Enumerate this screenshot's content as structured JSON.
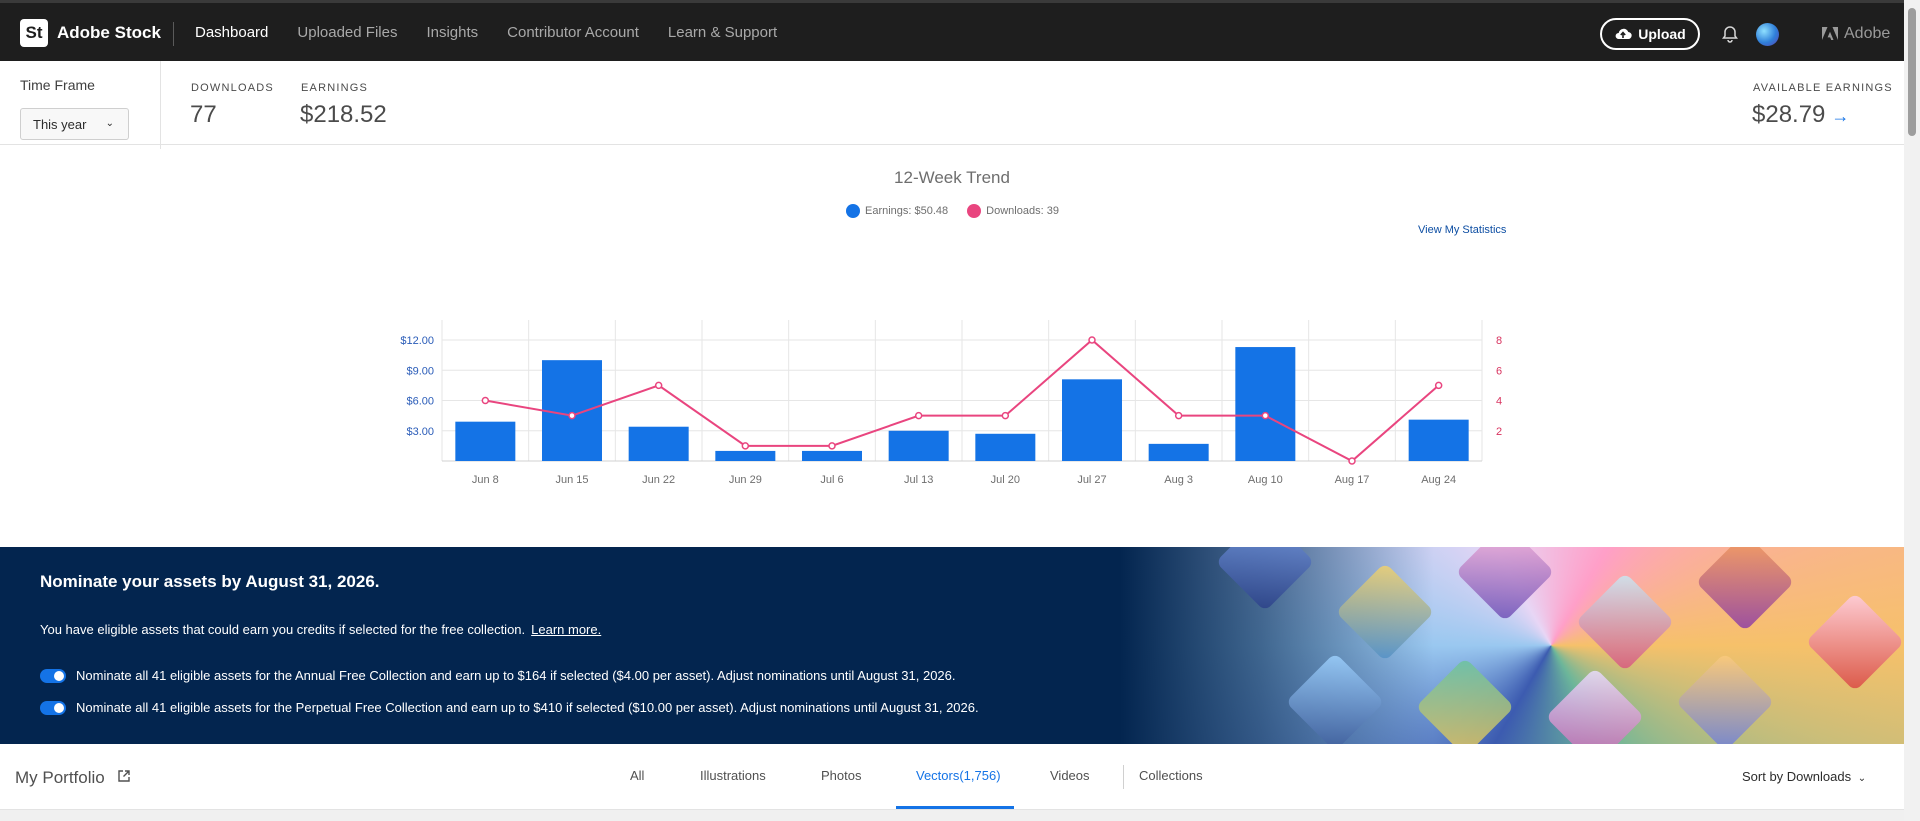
{
  "header": {
    "logo_text": "St",
    "brand": "Adobe Stock",
    "nav": [
      {
        "label": "Dashboard",
        "active": true
      },
      {
        "label": "Uploaded Files",
        "active": false
      },
      {
        "label": "Insights",
        "active": false
      },
      {
        "label": "Contributor Account",
        "active": false
      },
      {
        "label": "Learn & Support",
        "active": false
      }
    ],
    "upload_label": "Upload",
    "adobe_label": "Adobe"
  },
  "stats": {
    "timeframe_label": "Time Frame",
    "timeframe_value": "This year",
    "downloads_label": "DOWNLOADS",
    "downloads_value": "77",
    "earnings_label": "EARNINGS",
    "earnings_value": "$218.52",
    "available_label": "AVAILABLE EARNINGS",
    "available_value": "$28.79"
  },
  "chart_header": {
    "title": "12-Week Trend",
    "legend_earnings": "Earnings: $50.48",
    "legend_downloads": "Downloads: 39",
    "view_stats": "View My Statistics"
  },
  "chart_data": {
    "type": "bar",
    "title": "12-Week Trend",
    "categories": [
      "Jun 8",
      "Jun 15",
      "Jun 22",
      "Jun 29",
      "Jul 6",
      "Jul 13",
      "Jul 20",
      "Jul 27",
      "Aug 3",
      "Aug 10",
      "Aug 17",
      "Aug 24"
    ],
    "series": [
      {
        "name": "Earnings",
        "type": "bar",
        "axis": "left",
        "color": "#1473e6",
        "values": [
          3.9,
          10.0,
          3.4,
          1.0,
          1.0,
          3.0,
          2.7,
          8.1,
          1.7,
          11.3,
          0,
          4.1
        ]
      },
      {
        "name": "Downloads",
        "type": "line",
        "axis": "right",
        "color": "#e9457f",
        "values": [
          4,
          3,
          5,
          1,
          1,
          3,
          3,
          8,
          3,
          3,
          0,
          5
        ]
      }
    ],
    "y_left": {
      "ticks": [
        "$3.00",
        "$6.00",
        "$9.00",
        "$12.00"
      ],
      "tick_values": [
        3,
        6,
        9,
        12
      ],
      "ylim": [
        0,
        12
      ]
    },
    "y_right": {
      "ticks": [
        "2",
        "4",
        "6",
        "8"
      ],
      "tick_values": [
        2,
        4,
        6,
        8
      ],
      "ylim": [
        0,
        8
      ]
    },
    "grid": true
  },
  "banner": {
    "title": "Nominate your assets by August 31, 2026.",
    "text": "You have eligible assets that could earn you credits if selected for the free collection.",
    "link": "Learn more.",
    "nominations": [
      {
        "label": "Nominate all 41 eligible assets for the Annual Free Collection and earn up to $164 if selected ($4.00 per asset). Adjust nominations until August 31, 2026.",
        "enabled": true
      },
      {
        "label": "Nominate all 41 eligible assets for the Perpetual Free Collection and earn up to $410 if selected ($10.00 per asset). Adjust nominations until August 31, 2026.",
        "enabled": true
      }
    ]
  },
  "portfolio": {
    "title": "My Portfolio",
    "tabs": [
      {
        "label": "All",
        "active": false
      },
      {
        "label": "Illustrations",
        "active": false
      },
      {
        "label": "Photos",
        "active": false
      },
      {
        "label": "Vectors(1,756)",
        "active": true
      },
      {
        "label": "Videos",
        "active": false
      },
      {
        "label": "Collections",
        "active": false
      }
    ],
    "sort_label": "Sort by Downloads"
  },
  "colors": {
    "topbar": "#1e1e1e",
    "accent": "#1473e6",
    "downloads_line": "#e9457f",
    "banner_bg": "#03254f"
  }
}
